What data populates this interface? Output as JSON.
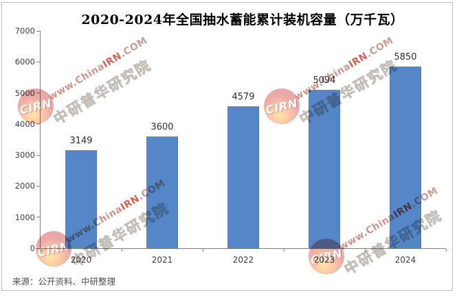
{
  "title": "2020-2024年全国抽水蓄能累计装机容量（万千瓦）",
  "source_note": "来源：公开资料、中研整理",
  "watermark": {
    "logo_text": "CIRN",
    "url_part1": "www.China",
    "url_part2": "IRN",
    "url_part3": ".COM",
    "cn_text": "中研普华研究院",
    "red": "#c63b2a"
  },
  "colors": {
    "bar": "#5587c8",
    "axis": "#808080",
    "tick_label": "#3f3947",
    "title": "#000000",
    "source": "#4c4c4c"
  },
  "chart_data": {
    "type": "bar",
    "title": "2020-2024年全国抽水蓄能累计装机容量（万千瓦）",
    "categories": [
      "2020",
      "2021",
      "2022",
      "2023",
      "2024"
    ],
    "values": [
      3149,
      3600,
      4579,
      5094,
      5850
    ],
    "xlabel": "",
    "ylabel": "",
    "unit": "万千瓦",
    "ylim": [
      0,
      7000
    ],
    "yticks": [
      0,
      1000,
      2000,
      3000,
      4000,
      5000,
      6000,
      7000
    ],
    "grid": false,
    "legend": null,
    "data_labels": true,
    "bar_color": "#5587c8"
  }
}
